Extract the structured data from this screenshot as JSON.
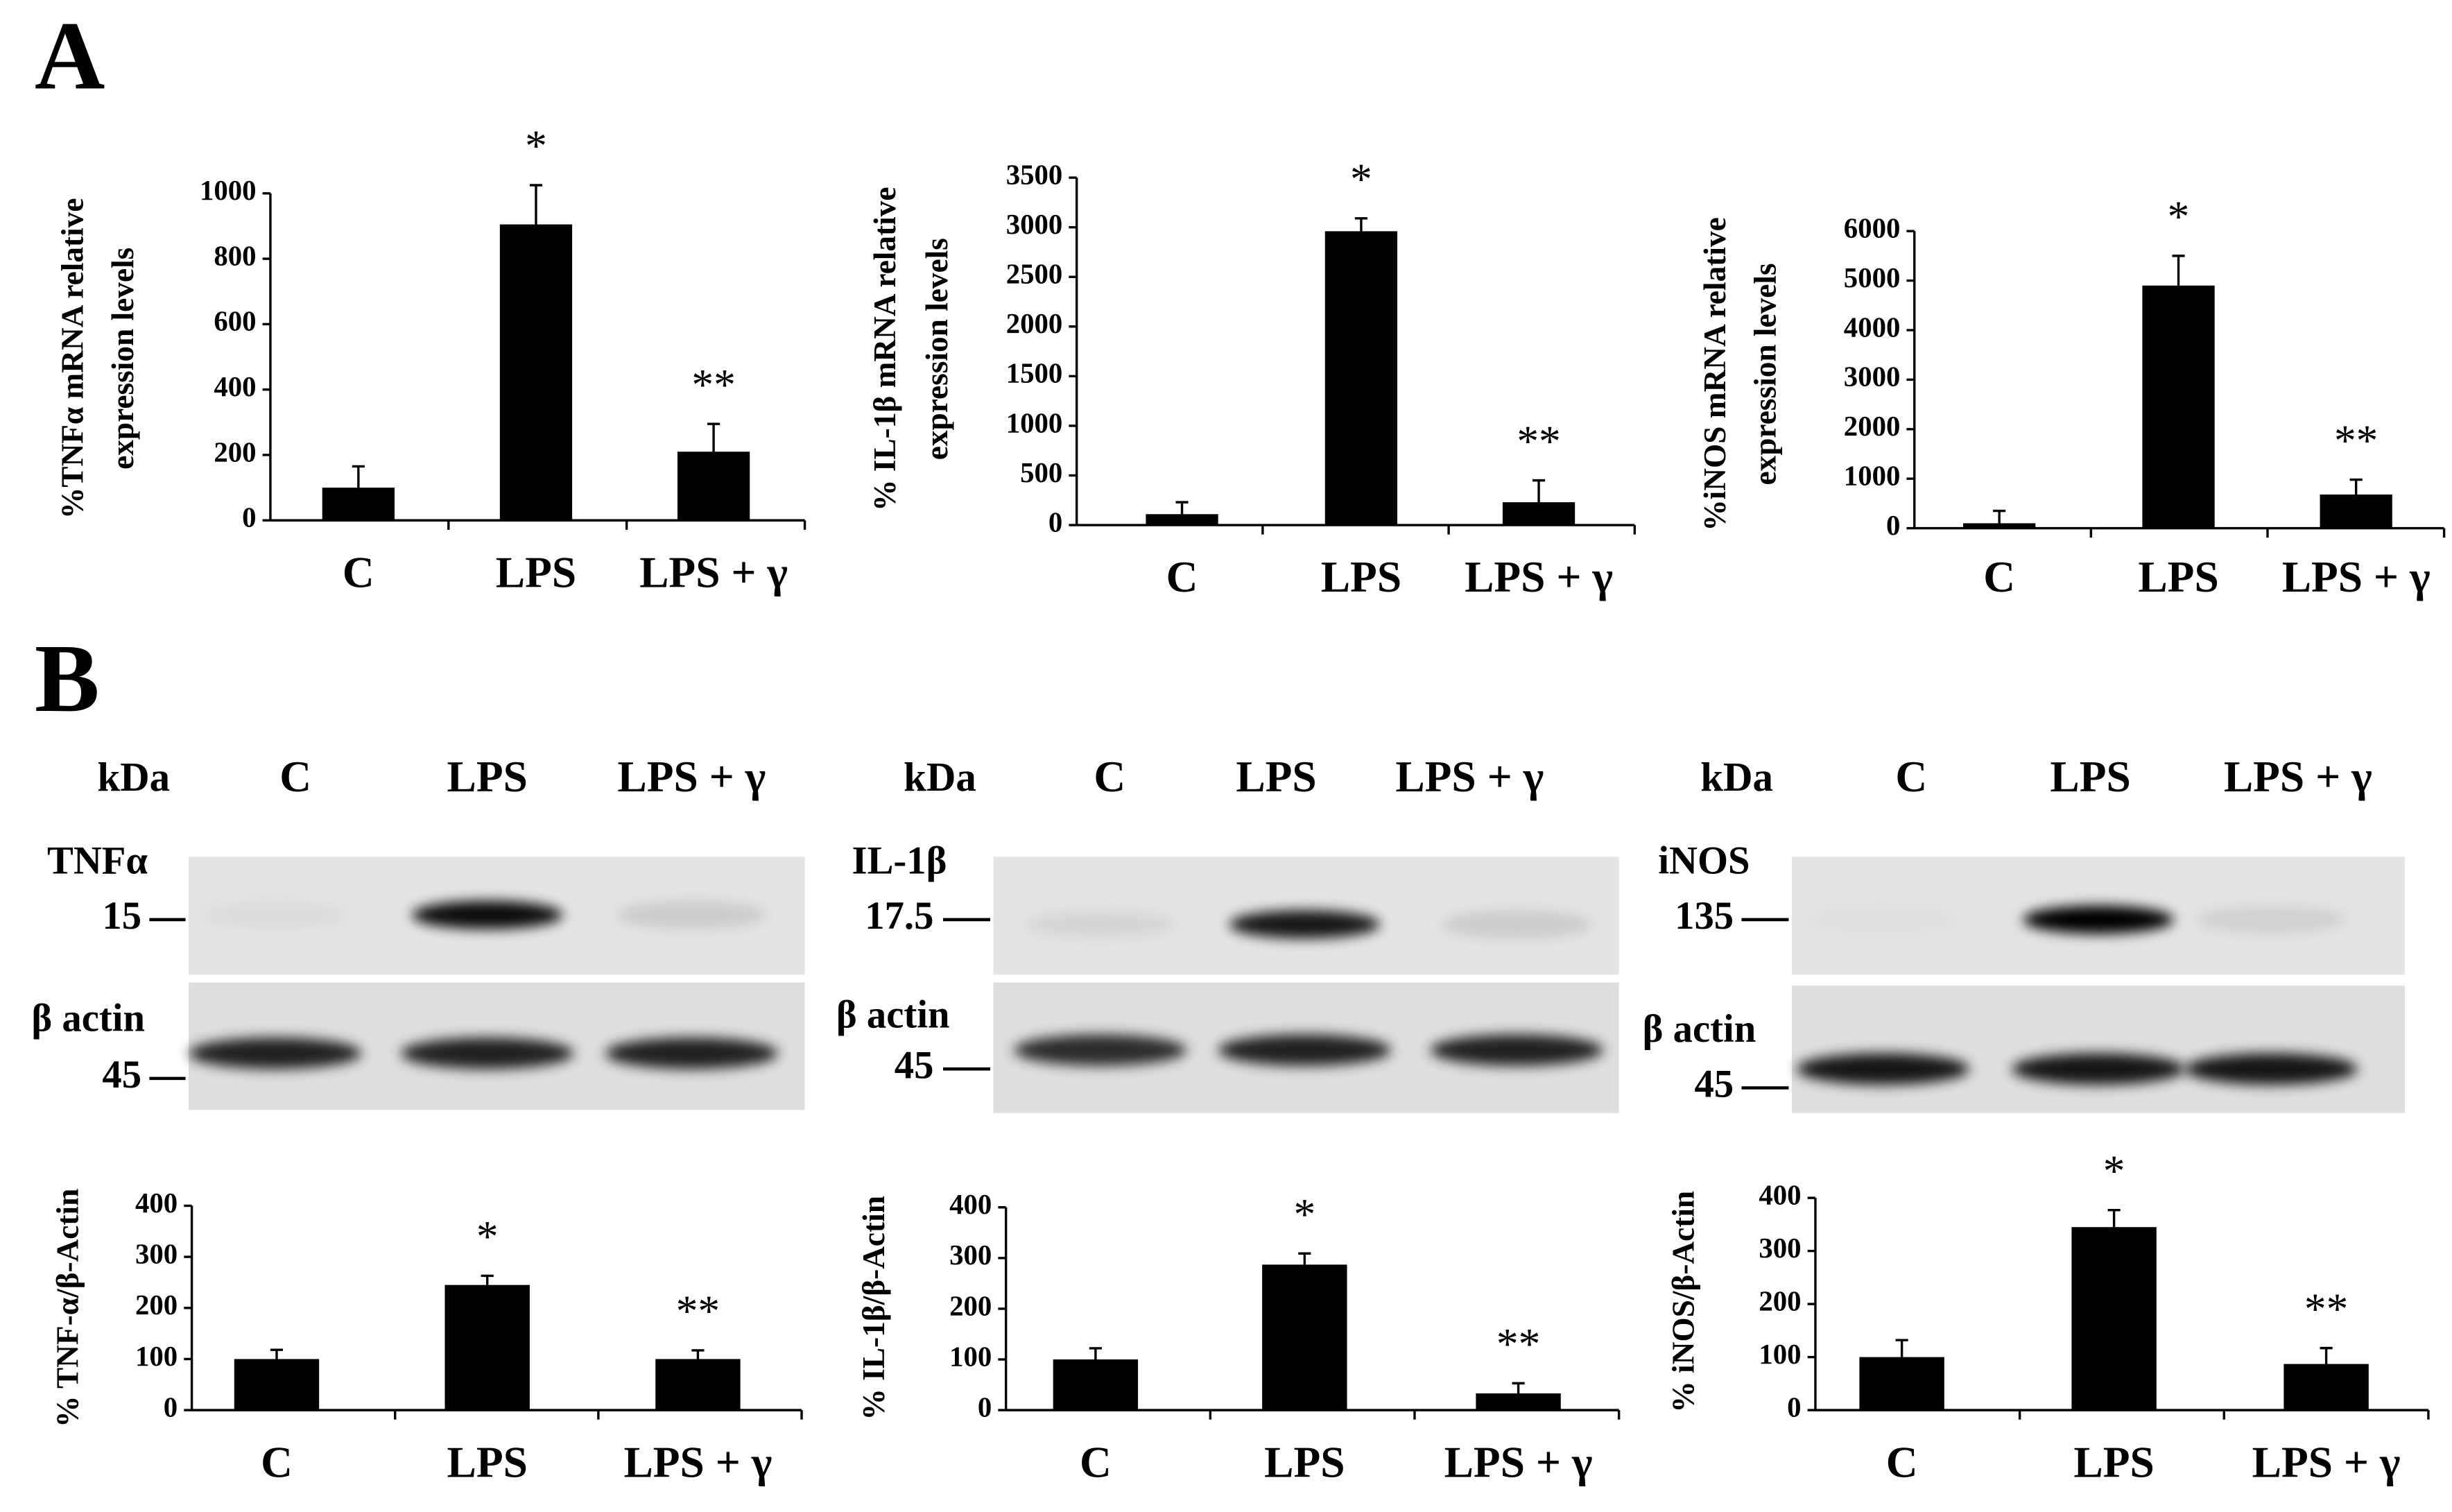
{
  "figure": {
    "panel_labels": [
      "A",
      "B"
    ],
    "blots": [
      {
        "header": "kDa",
        "lanes": [
          "C",
          "LPS",
          "LPS + γ"
        ],
        "protein": "TNFα",
        "protein_kda": "15",
        "actin": "β actin",
        "actin_kda": "45"
      },
      {
        "header": "kDa",
        "lanes": [
          "C",
          "LPS",
          "LPS + γ"
        ],
        "protein": "IL-1β",
        "protein_kda": "17.5",
        "actin": "β actin",
        "actin_kda": "45"
      },
      {
        "header": "kDa",
        "lanes": [
          "C",
          "LPS",
          "LPS + γ"
        ],
        "protein": "iNOS",
        "protein_kda": "135",
        "actin": "β actin",
        "actin_kda": "45"
      }
    ]
  },
  "chart_data": [
    {
      "type": "bar",
      "y_label": [
        "%TNFα mRNA relative",
        "expression levels"
      ],
      "categories": [
        "C",
        "LPS",
        "LPS + γ"
      ],
      "values": [
        100,
        905,
        210
      ],
      "errors": [
        65,
        120,
        85
      ],
      "annotations": [
        null,
        "*",
        "**"
      ],
      "color": "#000000",
      "ylim": [
        0,
        1000
      ],
      "yticks": [
        0,
        200,
        400,
        600,
        800,
        1000
      ]
    },
    {
      "type": "bar",
      "y_label": [
        "% IL-1β mRNA relative",
        "expression levels"
      ],
      "categories": [
        "C",
        "LPS",
        "LPS + γ"
      ],
      "values": [
        110,
        2960,
        230
      ],
      "errors": [
        120,
        130,
        220
      ],
      "annotations": [
        null,
        "*",
        "**"
      ],
      "color": "#000000",
      "ylim": [
        0,
        3500
      ],
      "yticks": [
        0,
        500,
        1000,
        1500,
        2000,
        2500,
        3000,
        3500
      ]
    },
    {
      "type": "bar",
      "y_label": [
        "%iNOS mRNA relative",
        "expression levels"
      ],
      "categories": [
        "C",
        "LPS",
        "LPS + γ"
      ],
      "values": [
        100,
        4900,
        680
      ],
      "errors": [
        250,
        600,
        300
      ],
      "annotations": [
        null,
        "*",
        "**"
      ],
      "color": "#000000",
      "ylim": [
        0,
        6000
      ],
      "yticks": [
        0,
        1000,
        2000,
        3000,
        4000,
        5000,
        6000
      ]
    },
    {
      "type": "bar",
      "y_label": [
        "% TNF-α/β-Actin"
      ],
      "categories": [
        "C",
        "LPS",
        "LPS + γ"
      ],
      "values": [
        100,
        245,
        100
      ],
      "errors": [
        18,
        18,
        17
      ],
      "annotations": [
        null,
        "*",
        "**"
      ],
      "color": "#000000",
      "ylim": [
        0,
        400
      ],
      "yticks": [
        0,
        100,
        200,
        300,
        400
      ]
    },
    {
      "type": "bar",
      "y_label": [
        "% IL-1β/β-Actin"
      ],
      "categories": [
        "C",
        "LPS",
        "LPS + γ"
      ],
      "values": [
        100,
        287,
        33
      ],
      "errors": [
        22,
        22,
        20
      ],
      "annotations": [
        null,
        "*",
        "**"
      ],
      "color": "#000000",
      "ylim": [
        0,
        400
      ],
      "yticks": [
        0,
        100,
        200,
        300,
        400
      ]
    },
    {
      "type": "bar",
      "y_label": [
        "% iNOS/β-Actin"
      ],
      "categories": [
        "C",
        "LPS",
        "LPS + γ"
      ],
      "values": [
        100,
        345,
        87
      ],
      "errors": [
        32,
        32,
        30
      ],
      "annotations": [
        null,
        "*",
        "**"
      ],
      "color": "#000000",
      "ylim": [
        0,
        400
      ],
      "yticks": [
        0,
        100,
        200,
        300,
        400
      ]
    }
  ]
}
